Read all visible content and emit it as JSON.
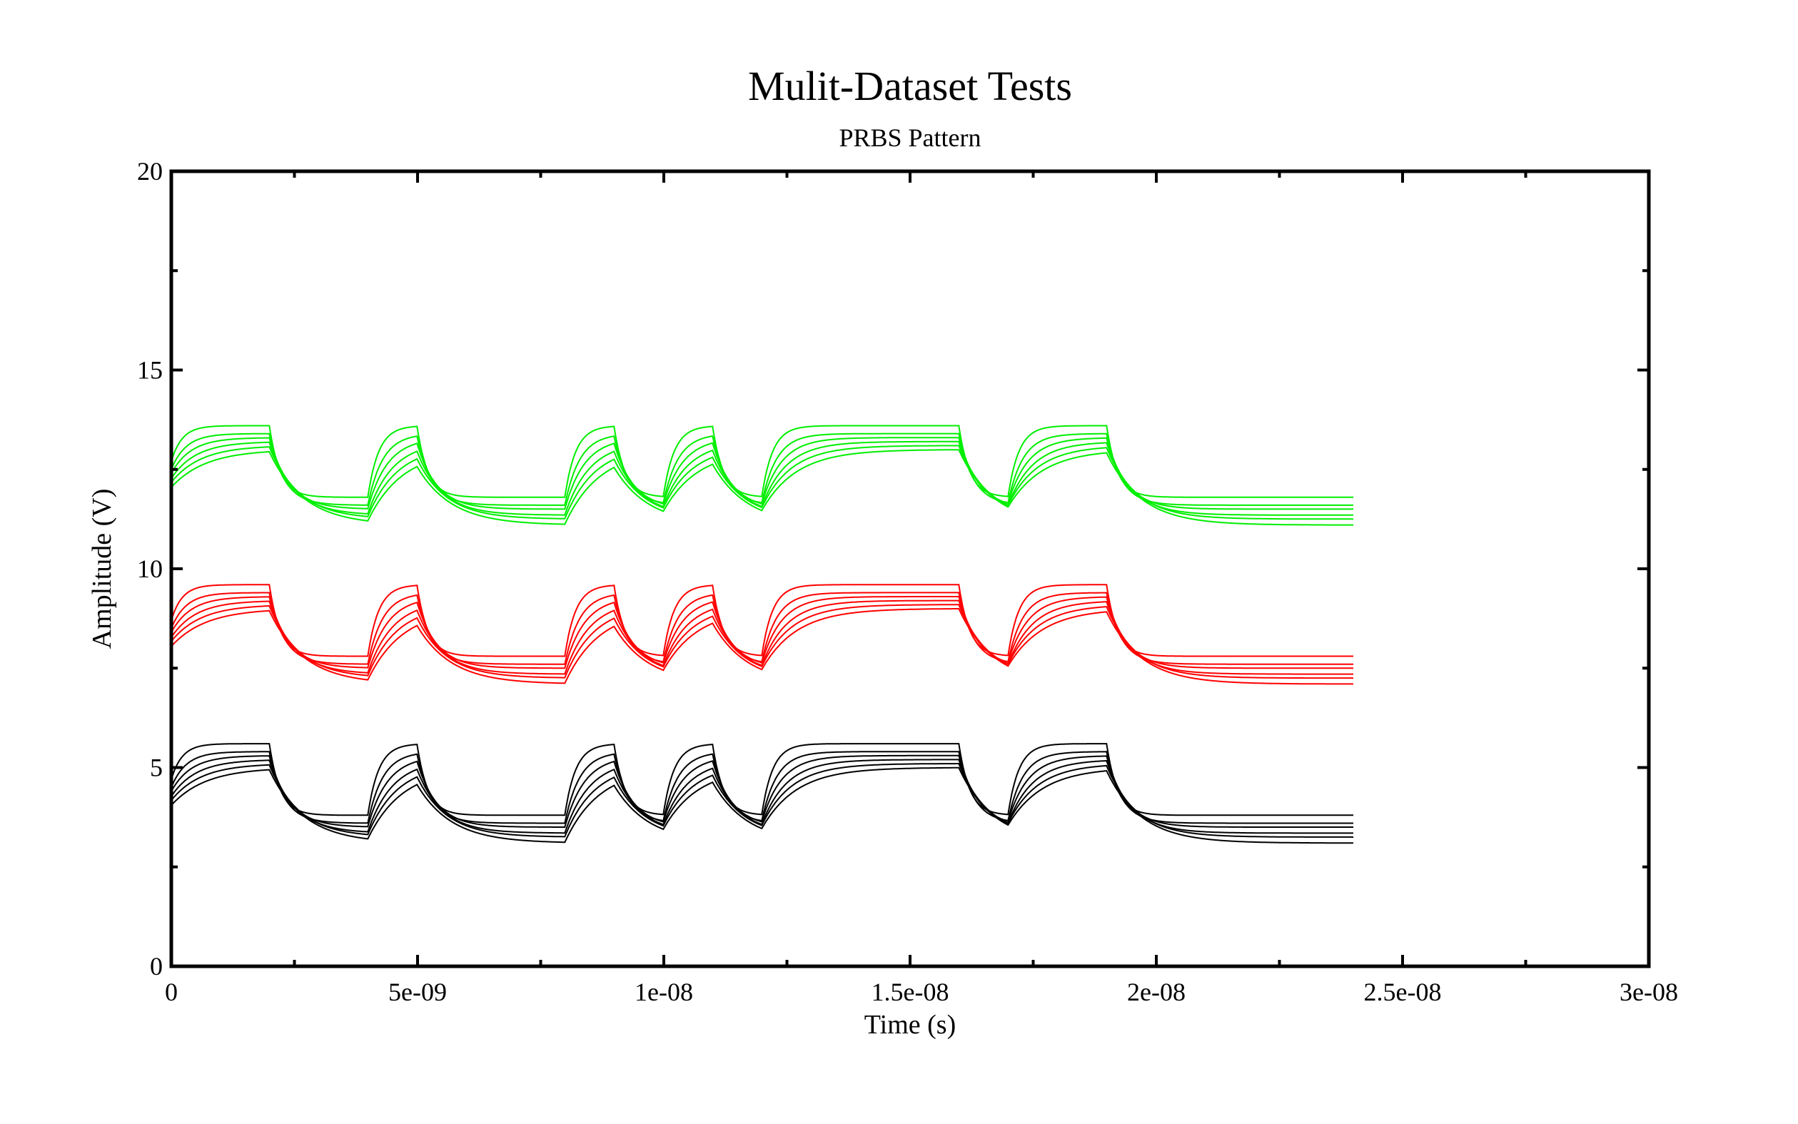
{
  "chart_data": {
    "type": "line",
    "title": "Mulit-Dataset Tests",
    "subtitle": "PRBS Pattern",
    "xlabel": "Time (s)",
    "ylabel": "Amplitude (V)",
    "xlim": [
      0,
      3e-08
    ],
    "ylim": [
      0,
      20
    ],
    "x_ticks": [
      0,
      5e-09,
      1e-08,
      1.5e-08,
      2e-08,
      2.5e-08,
      3e-08
    ],
    "x_tick_labels": [
      "0",
      "5e-09",
      "1e-08",
      "1.5e-08",
      "2e-08",
      "2.5e-08",
      "3e-08"
    ],
    "y_ticks": [
      0,
      5,
      10,
      15,
      20
    ],
    "y_tick_labels": [
      "0",
      "5",
      "10",
      "15",
      "20"
    ],
    "grid": false,
    "legend": "none",
    "pattern": {
      "bit_period": 1e-09,
      "transition_times": [
        0,
        2e-09,
        4e-09,
        5e-09,
        8e-09,
        9e-09,
        1e-08,
        1.1e-08,
        1.2e-08,
        1.6e-08,
        1.7e-08,
        1.9e-08
      ],
      "initial_level": "low",
      "end_time": 2.4e-08
    },
    "series": [
      {
        "color": "#00ee00",
        "low": 11.5,
        "high": 13.4,
        "traces": [
          {
            "low": 11.1,
            "high": 13.0,
            "tau": 7e-10
          },
          {
            "low": 11.25,
            "high": 13.1,
            "tau": 6e-10
          },
          {
            "low": 11.35,
            "high": 13.2,
            "tau": 5e-10
          },
          {
            "low": 11.5,
            "high": 13.3,
            "tau": 4e-10
          },
          {
            "low": 11.6,
            "high": 13.4,
            "tau": 3e-10
          },
          {
            "low": 11.8,
            "high": 13.6,
            "tau": 2.2e-10
          }
        ]
      },
      {
        "color": "#ff0000",
        "low": 7.5,
        "high": 9.4,
        "traces": [
          {
            "low": 7.1,
            "high": 9.0,
            "tau": 7e-10
          },
          {
            "low": 7.25,
            "high": 9.1,
            "tau": 6e-10
          },
          {
            "low": 7.35,
            "high": 9.2,
            "tau": 5e-10
          },
          {
            "low": 7.5,
            "high": 9.3,
            "tau": 4e-10
          },
          {
            "low": 7.6,
            "high": 9.4,
            "tau": 3e-10
          },
          {
            "low": 7.8,
            "high": 9.6,
            "tau": 2.2e-10
          }
        ]
      },
      {
        "color": "#000000",
        "low": 3.5,
        "high": 5.4,
        "traces": [
          {
            "low": 3.1,
            "high": 5.0,
            "tau": 7e-10
          },
          {
            "low": 3.25,
            "high": 5.1,
            "tau": 6e-10
          },
          {
            "low": 3.35,
            "high": 5.2,
            "tau": 5e-10
          },
          {
            "low": 3.5,
            "high": 5.3,
            "tau": 4e-10
          },
          {
            "low": 3.6,
            "high": 5.4,
            "tau": 3e-10
          },
          {
            "low": 3.8,
            "high": 5.6,
            "tau": 2.2e-10
          }
        ]
      }
    ]
  }
}
